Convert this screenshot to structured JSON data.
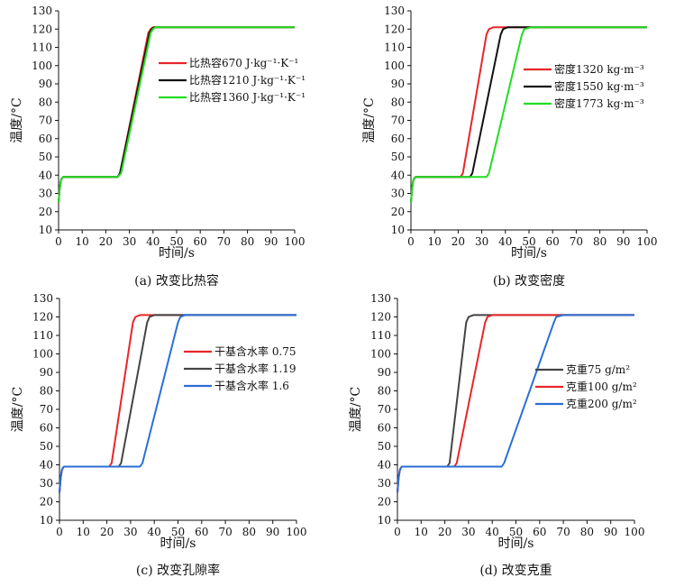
{
  "chart_data": [
    {
      "type": "line",
      "title": "",
      "caption": "(a) 改变比热容",
      "xlabel": "时间/s",
      "ylabel": "温度/°C",
      "xlim": [
        0,
        100
      ],
      "ylim": [
        10,
        130
      ],
      "xticks": [
        0,
        10,
        20,
        30,
        40,
        50,
        60,
        70,
        80,
        90,
        100
      ],
      "yticks": [
        10,
        20,
        30,
        40,
        50,
        60,
        70,
        80,
        90,
        100,
        110,
        120,
        130
      ],
      "grid": false,
      "legend_position": "center-right",
      "series": [
        {
          "name": "比热容670 J·kg⁻¹·K⁻¹",
          "color": "#e8262a",
          "x": [
            0,
            0.5,
            1,
            1.5,
            2,
            25,
            26,
            38,
            39,
            40,
            100
          ],
          "y": [
            25,
            33,
            37,
            38.5,
            39,
            39,
            41,
            118,
            120,
            121,
            121
          ]
        },
        {
          "name": "比热容1210 J·kg⁻¹·K⁻¹",
          "color": "#111111",
          "x": [
            0,
            0.5,
            1,
            1.5,
            2,
            25,
            26,
            38.5,
            39.5,
            40.5,
            100
          ],
          "y": [
            25,
            33,
            37,
            38.5,
            39,
            39,
            41,
            118,
            120,
            121,
            121
          ]
        },
        {
          "name": "比热容1360 J·kg⁻¹·K⁻¹",
          "color": "#22dd22",
          "x": [
            0,
            0.5,
            1,
            1.5,
            2,
            25,
            26.5,
            39,
            40,
            41,
            100
          ],
          "y": [
            25,
            33,
            37,
            38.5,
            39,
            39,
            41,
            118,
            120,
            121,
            121
          ]
        }
      ]
    },
    {
      "type": "line",
      "title": "",
      "caption": "(b) 改变密度",
      "xlabel": "时间/s",
      "ylabel": "温度/°C",
      "xlim": [
        0,
        100
      ],
      "ylim": [
        10,
        130
      ],
      "xticks": [
        0,
        10,
        20,
        30,
        40,
        50,
        60,
        70,
        80,
        90,
        100
      ],
      "yticks": [
        10,
        20,
        30,
        40,
        50,
        60,
        70,
        80,
        90,
        100,
        110,
        120,
        130
      ],
      "grid": false,
      "legend_position": "center-right",
      "series": [
        {
          "name": "密度1320 kg·m⁻³",
          "color": "#e8262a",
          "x": [
            0,
            0.5,
            1,
            1.5,
            2,
            21,
            22,
            32,
            33,
            35,
            100
          ],
          "y": [
            25,
            33,
            37,
            38.5,
            39,
            39,
            41,
            117,
            120,
            121,
            121
          ]
        },
        {
          "name": "密度1550 kg·m⁻³",
          "color": "#111111",
          "x": [
            0,
            0.5,
            1,
            1.5,
            2,
            25,
            26,
            38,
            39,
            41,
            100
          ],
          "y": [
            25,
            33,
            37,
            38.5,
            39,
            39,
            41,
            117,
            120,
            121,
            121
          ]
        },
        {
          "name": "密度1773 kg·m⁻³",
          "color": "#22dd22",
          "x": [
            0,
            0.5,
            1,
            1.5,
            2,
            32,
            33,
            47,
            48,
            51,
            100
          ],
          "y": [
            25,
            33,
            37,
            38.5,
            39,
            39,
            41,
            117,
            120,
            121,
            121
          ]
        }
      ]
    },
    {
      "type": "line",
      "title": "",
      "caption": "(c) 改变孔隙率",
      "xlabel": "时间/s",
      "ylabel": "温度/°C",
      "xlim": [
        0,
        100
      ],
      "ylim": [
        10,
        130
      ],
      "xticks": [
        0,
        10,
        20,
        30,
        40,
        50,
        60,
        70,
        80,
        90,
        100
      ],
      "yticks": [
        10,
        20,
        30,
        40,
        50,
        60,
        70,
        80,
        90,
        100,
        110,
        120,
        130
      ],
      "grid": false,
      "legend_position": "center-right",
      "series": [
        {
          "name": "干基含水率 0.75",
          "color": "#e8262a",
          "x": [
            0,
            0.5,
            1,
            1.5,
            2,
            21,
            22,
            31,
            32,
            34,
            100
          ],
          "y": [
            25,
            33,
            37,
            38.5,
            39,
            39,
            41,
            117,
            120,
            121,
            121
          ]
        },
        {
          "name": "干基含水率 1.19",
          "color": "#444444",
          "x": [
            0,
            0.5,
            1,
            1.5,
            2,
            25,
            26,
            37,
            38,
            40,
            100
          ],
          "y": [
            25,
            33,
            37,
            38.5,
            39,
            39,
            41,
            117,
            120,
            121,
            121
          ]
        },
        {
          "name": "干基含水率 1.6",
          "color": "#2a6fd6",
          "x": [
            0,
            0.5,
            1,
            1.5,
            2,
            34,
            35,
            50,
            51,
            53,
            100
          ],
          "y": [
            25,
            33,
            37,
            38.5,
            39,
            39,
            41,
            117,
            120,
            121,
            121
          ]
        }
      ]
    },
    {
      "type": "line",
      "title": "",
      "caption": "(d) 改变克重",
      "xlabel": "时间/s",
      "ylabel": "温度/°C",
      "xlim": [
        0,
        100
      ],
      "ylim": [
        10,
        130
      ],
      "xticks": [
        0,
        10,
        20,
        30,
        40,
        50,
        60,
        70,
        80,
        90,
        100
      ],
      "yticks": [
        10,
        20,
        30,
        40,
        50,
        60,
        70,
        80,
        90,
        100,
        110,
        120,
        130
      ],
      "grid": false,
      "legend_position": "center-right",
      "series": [
        {
          "name": "克重75 g/m²",
          "color": "#444444",
          "x": [
            0,
            0.5,
            1,
            1.5,
            2,
            21,
            22,
            29,
            30,
            32,
            100
          ],
          "y": [
            25,
            33,
            37,
            38.5,
            39,
            39,
            41,
            117,
            120,
            121,
            121
          ]
        },
        {
          "name": "克重100 g/m²",
          "color": "#e8262a",
          "x": [
            0,
            0.5,
            1,
            1.5,
            2,
            24,
            25,
            37,
            38,
            40,
            100
          ],
          "y": [
            25,
            33,
            37,
            38.5,
            39,
            39,
            41,
            117,
            120,
            121,
            121
          ]
        },
        {
          "name": "克重200 g/m²",
          "color": "#2a6fd6",
          "x": [
            0,
            0.5,
            1,
            1.5,
            2,
            44,
            45,
            66,
            67,
            70,
            100
          ],
          "y": [
            25,
            33,
            37,
            38.5,
            39,
            39,
            41,
            117,
            120,
            121,
            121
          ]
        }
      ]
    }
  ]
}
